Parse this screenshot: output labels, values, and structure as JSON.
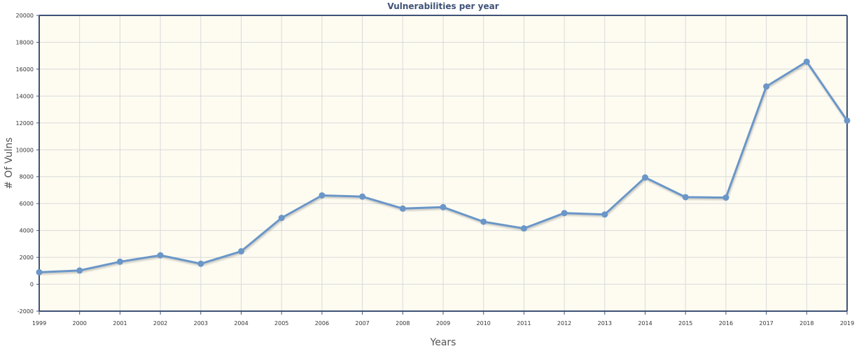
{
  "chart_data": {
    "type": "line",
    "title": "Vulnerabilities per year",
    "xlabel": "Years",
    "ylabel": "# Of Vulns",
    "x": [
      "1999",
      "2000",
      "2001",
      "2002",
      "2003",
      "2004",
      "2005",
      "2006",
      "2007",
      "2008",
      "2009",
      "2010",
      "2011",
      "2012",
      "2013",
      "2014",
      "2015",
      "2016",
      "2017",
      "2018",
      "2019"
    ],
    "series": [
      {
        "values": [
          894,
          1020,
          1677,
          2156,
          1527,
          2451,
          4935,
          6610,
          6520,
          5632,
          5736,
          4652,
          4155,
          5297,
          5191,
          7946,
          6480,
          6447,
          14714,
          16557,
          12174
        ]
      }
    ],
    "ylim": [
      -2000,
      20000
    ],
    "yticks": [
      -2000,
      0,
      2000,
      4000,
      6000,
      8000,
      10000,
      12000,
      14000,
      16000,
      18000,
      20000
    ],
    "grid": true,
    "legend": "none",
    "colors": {
      "line": "#6b96c8",
      "marker": "#6b96c8",
      "plot_background": "#fefcf1",
      "grid": "#d9d9d9",
      "axis": "#3f5277",
      "title": "#3f5277"
    }
  }
}
